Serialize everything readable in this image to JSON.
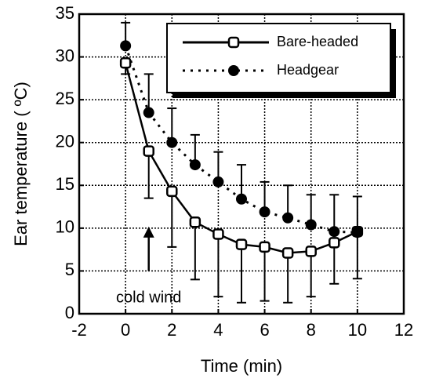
{
  "chart_data": {
    "type": "line",
    "xlabel": "Time (min)",
    "ylabel": "Ear temperature ( ºC)",
    "xlim": [
      -2,
      12
    ],
    "ylim": [
      0,
      35
    ],
    "xticks": [
      -2,
      0,
      2,
      4,
      6,
      8,
      10,
      12
    ],
    "yticks": [
      0,
      5,
      10,
      15,
      20,
      25,
      30,
      35
    ],
    "grid": true,
    "legend": "upper right",
    "x": [
      0,
      1,
      2,
      3,
      4,
      5,
      6,
      7,
      8,
      9,
      10
    ],
    "series": [
      {
        "name": "Bare-headed",
        "color": "#000000",
        "style": "solid",
        "marker": "open-square",
        "error_direction": "down",
        "values": [
          29.3,
          19,
          14.3,
          10.7,
          9.3,
          8.1,
          7.8,
          7.1,
          7.3,
          8.3,
          9.6
        ],
        "errors": [
          1.3,
          5.5,
          6.5,
          6.7,
          7.3,
          6.8,
          6.3,
          5.8,
          5.3,
          4.8,
          5.5
        ]
      },
      {
        "name": "Headgear",
        "color": "#000000",
        "style": "dotted",
        "marker": "filled-circle",
        "error_direction": "up",
        "values": [
          31.3,
          23.5,
          20,
          17.4,
          15.4,
          13.4,
          11.9,
          11.2,
          10.4,
          9.6,
          9.5
        ],
        "errors": [
          2.7,
          4.5,
          4,
          3.5,
          3.5,
          4,
          3.5,
          3.8,
          3.5,
          4.3,
          4.2
        ]
      }
    ],
    "annotations": [
      {
        "text": "cold wind",
        "x": 1,
        "y": 10
      }
    ]
  }
}
